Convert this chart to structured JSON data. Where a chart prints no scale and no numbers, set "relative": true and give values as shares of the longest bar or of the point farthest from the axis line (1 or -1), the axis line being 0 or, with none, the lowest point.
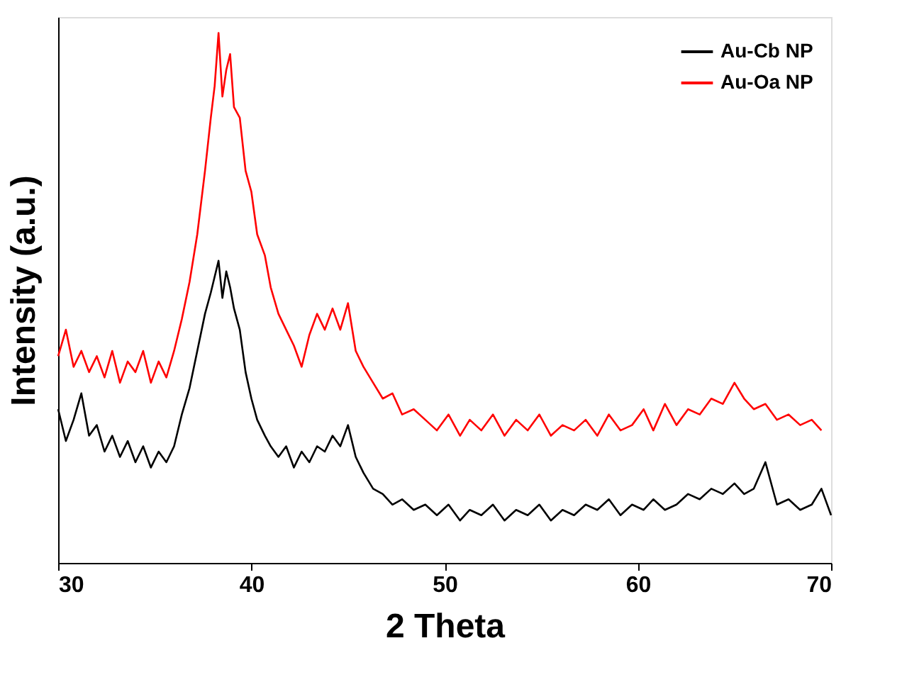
{
  "chart_data": {
    "type": "line",
    "relative": true,
    "xlabel": "2 Theta",
    "ylabel": "Intensity (a.u.)",
    "xlim": [
      30,
      70
    ],
    "xticks": [
      30,
      40,
      50,
      60,
      70
    ],
    "grid": false,
    "legend": "top right",
    "marker": "none",
    "line_style": "solid",
    "series": [
      {
        "name": "Au-Cb NP",
        "color": "#000000",
        "x": [
          30,
          30.4,
          30.8,
          31.2,
          31.6,
          32,
          32.4,
          32.8,
          33.2,
          33.6,
          34,
          34.4,
          34.8,
          35.2,
          35.6,
          36,
          36.4,
          36.8,
          37.2,
          37.6,
          37.9,
          38.1,
          38.3,
          38.5,
          38.7,
          38.9,
          39.1,
          39.4,
          39.7,
          40,
          40.3,
          40.7,
          41,
          41.4,
          41.8,
          42.2,
          42.6,
          43,
          43.4,
          43.8,
          44.2,
          44.6,
          45,
          45.4,
          45.8,
          46.3,
          46.8,
          47.3,
          47.8,
          48.4,
          49,
          49.6,
          50.2,
          50.8,
          51.3,
          51.9,
          52.5,
          53.1,
          53.7,
          54.3,
          54.9,
          55.5,
          56.1,
          56.7,
          57.3,
          57.9,
          58.5,
          59.1,
          59.7,
          60.3,
          60.8,
          61.4,
          62,
          62.6,
          63.2,
          63.8,
          64.4,
          65,
          65.5,
          66,
          66.6,
          67.2,
          67.8,
          68.4,
          69,
          69.5,
          70
        ],
        "values": [
          0.29,
          0.23,
          0.27,
          0.32,
          0.24,
          0.26,
          0.21,
          0.24,
          0.2,
          0.23,
          0.19,
          0.22,
          0.18,
          0.21,
          0.19,
          0.22,
          0.28,
          0.33,
          0.4,
          0.47,
          0.51,
          0.54,
          0.57,
          0.5,
          0.55,
          0.52,
          0.48,
          0.44,
          0.36,
          0.31,
          0.27,
          0.24,
          0.22,
          0.2,
          0.22,
          0.18,
          0.21,
          0.19,
          0.22,
          0.21,
          0.24,
          0.22,
          0.26,
          0.2,
          0.17,
          0.14,
          0.13,
          0.11,
          0.12,
          0.1,
          0.11,
          0.09,
          0.11,
          0.08,
          0.1,
          0.09,
          0.11,
          0.08,
          0.1,
          0.09,
          0.11,
          0.08,
          0.1,
          0.09,
          0.11,
          0.1,
          0.12,
          0.09,
          0.11,
          0.1,
          0.12,
          0.1,
          0.11,
          0.13,
          0.12,
          0.14,
          0.13,
          0.15,
          0.13,
          0.14,
          0.19,
          0.11,
          0.12,
          0.1,
          0.11,
          0.14,
          0.09
        ]
      },
      {
        "name": "Au-Oa NP",
        "color": "#ff0000",
        "x": [
          30,
          30.4,
          30.8,
          31.2,
          31.6,
          32,
          32.4,
          32.8,
          33.2,
          33.6,
          34,
          34.4,
          34.8,
          35.2,
          35.6,
          36,
          36.4,
          36.8,
          37.2,
          37.6,
          37.9,
          38.1,
          38.3,
          38.5,
          38.7,
          38.9,
          39.1,
          39.4,
          39.7,
          40,
          40.3,
          40.7,
          41,
          41.4,
          41.8,
          42.2,
          42.6,
          43,
          43.4,
          43.8,
          44.2,
          44.6,
          45,
          45.4,
          45.8,
          46.3,
          46.8,
          47.3,
          47.8,
          48.4,
          49,
          49.6,
          50.2,
          50.8,
          51.3,
          51.9,
          52.5,
          53.1,
          53.7,
          54.3,
          54.9,
          55.5,
          56.1,
          56.7,
          57.3,
          57.9,
          58.5,
          59.1,
          59.7,
          60.3,
          60.8,
          61.4,
          62,
          62.6,
          63.2,
          63.8,
          64.4,
          65,
          65.5,
          66,
          66.6,
          67.2,
          67.8,
          68.4,
          69,
          69.5
        ],
        "values": [
          0.39,
          0.44,
          0.37,
          0.4,
          0.36,
          0.39,
          0.35,
          0.4,
          0.34,
          0.38,
          0.36,
          0.4,
          0.34,
          0.38,
          0.35,
          0.4,
          0.46,
          0.53,
          0.62,
          0.74,
          0.84,
          0.9,
          1.0,
          0.88,
          0.93,
          0.96,
          0.86,
          0.84,
          0.74,
          0.7,
          0.62,
          0.58,
          0.52,
          0.47,
          0.44,
          0.41,
          0.37,
          0.43,
          0.47,
          0.44,
          0.48,
          0.44,
          0.49,
          0.4,
          0.37,
          0.34,
          0.31,
          0.32,
          0.28,
          0.29,
          0.27,
          0.25,
          0.28,
          0.24,
          0.27,
          0.25,
          0.28,
          0.24,
          0.27,
          0.25,
          0.28,
          0.24,
          0.26,
          0.25,
          0.27,
          0.24,
          0.28,
          0.25,
          0.26,
          0.29,
          0.25,
          0.3,
          0.26,
          0.29,
          0.28,
          0.31,
          0.3,
          0.34,
          0.31,
          0.29,
          0.3,
          0.27,
          0.28,
          0.26,
          0.27,
          0.25
        ]
      }
    ]
  }
}
